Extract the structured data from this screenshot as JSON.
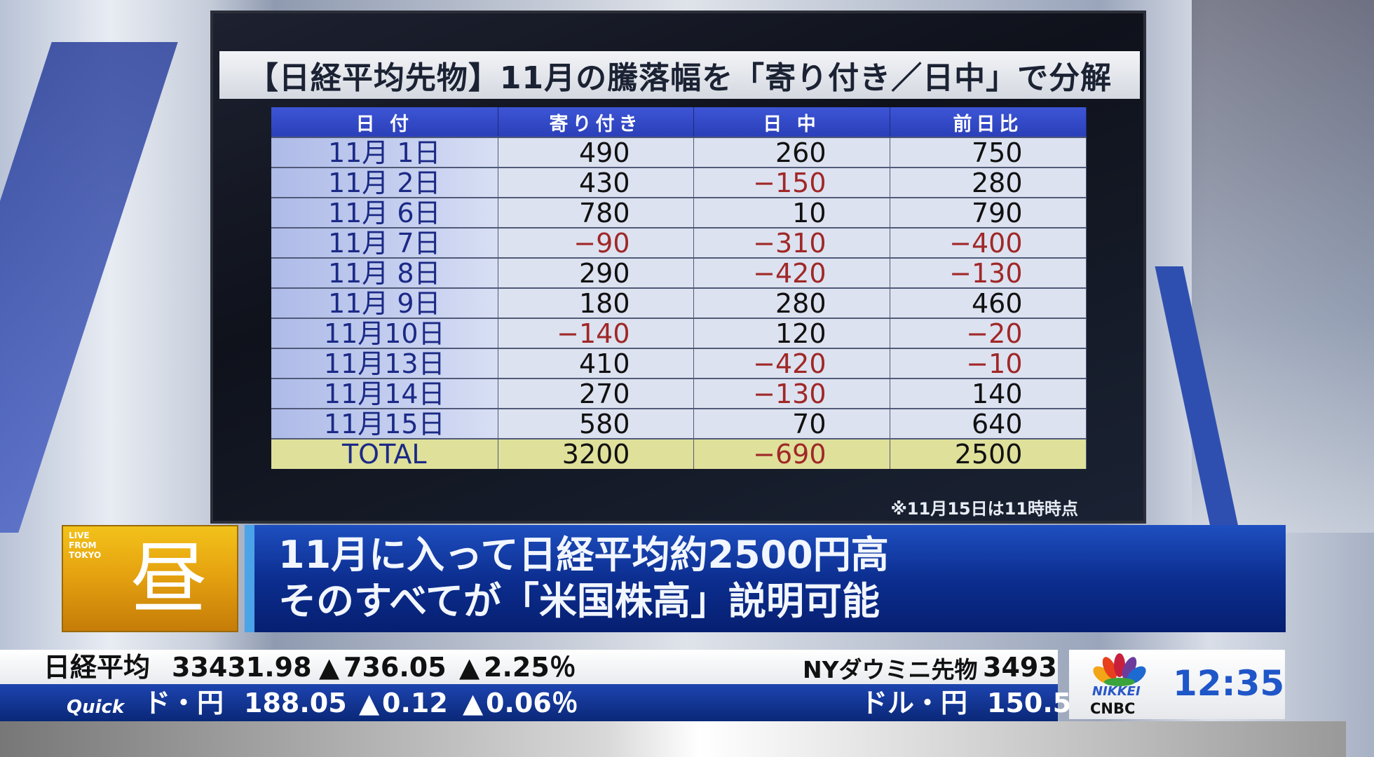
{
  "screen": {
    "title": "【日経平均先物】11月の騰落幅を「寄り付き／日中」で分解",
    "columns": [
      "日 付",
      "寄り付き",
      "日 中",
      "前日比"
    ],
    "rows": [
      {
        "date": "11月 1日",
        "open": "490",
        "intraday": "260",
        "change": "750"
      },
      {
        "date": "11月 2日",
        "open": "430",
        "intraday": "−150",
        "change": "280"
      },
      {
        "date": "11月 6日",
        "open": "780",
        "intraday": "10",
        "change": "790"
      },
      {
        "date": "11月 7日",
        "open": "−90",
        "intraday": "−310",
        "change": "−400"
      },
      {
        "date": "11月 8日",
        "open": "290",
        "intraday": "−420",
        "change": "−130"
      },
      {
        "date": "11月 9日",
        "open": "180",
        "intraday": "280",
        "change": "460"
      },
      {
        "date": "11月10日",
        "open": "−140",
        "intraday": "120",
        "change": "−20"
      },
      {
        "date": "11月13日",
        "open": "410",
        "intraday": "−420",
        "change": "−10"
      },
      {
        "date": "11月14日",
        "open": "270",
        "intraday": "−130",
        "change": "140"
      },
      {
        "date": "11月15日",
        "open": "580",
        "intraday": "70",
        "change": "640"
      }
    ],
    "total": {
      "date": "TOTAL",
      "open": "3200",
      "intraday": "−690",
      "change": "2500"
    },
    "footnote": "※11月15日は11時時点",
    "colors": {
      "header": "#2f45c4",
      "negative": "#a02828",
      "total_row": "#dfe09a"
    }
  },
  "badge": {
    "live": "LIVE FROM TOKYO",
    "kanji": "昼"
  },
  "headline": {
    "line1": "11月に入って日経平均約2500円高",
    "line2": "そのすべてが「米国株高」説明可能"
  },
  "ticker": {
    "top": {
      "name": "日経平均",
      "value": "33431.98",
      "change": "736.05",
      "pct": "2.25％",
      "name2": "NYダウミニ先物",
      "value2": "3493"
    },
    "bottom": {
      "source": "Quick",
      "name": "ド・円",
      "value": "188.05",
      "change": "0.12",
      "pct": "0.06％",
      "name2": "ドル・円",
      "value2": "150.5"
    },
    "up_arrow": "▲"
  },
  "logo": {
    "nikkei": "NIKKEI",
    "cnbc": "CNBC",
    "clock": "12:35"
  }
}
